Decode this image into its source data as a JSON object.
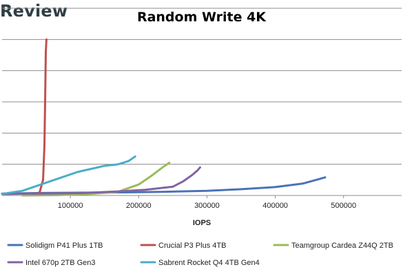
{
  "header": {
    "logo_text": "Review"
  },
  "chart_data": {
    "type": "line",
    "title": "Random Write 4K",
    "xlabel": "IOPS",
    "ylabel": "",
    "xlim": [
      0,
      585000
    ],
    "ylim": [
      0,
      6
    ],
    "xticks": [
      100000,
      200000,
      300000,
      400000,
      500000
    ],
    "xtick_labels": [
      "100000",
      "200000",
      "300000",
      "400000",
      "500000"
    ],
    "grid": true,
    "legend_position": "bottom",
    "series": [
      {
        "name": "Solidigm P41 Plus 1TB",
        "color": "#4a72b8",
        "points": [
          [
            0,
            0.06
          ],
          [
            60000,
            0.08
          ],
          [
            120000,
            0.09
          ],
          [
            180000,
            0.1
          ],
          [
            240000,
            0.12
          ],
          [
            300000,
            0.15
          ],
          [
            350000,
            0.2
          ],
          [
            400000,
            0.27
          ],
          [
            440000,
            0.38
          ],
          [
            460000,
            0.5
          ],
          [
            473000,
            0.58
          ]
        ]
      },
      {
        "name": "Crucial P3 Plus 4TB",
        "color": "#c0504d",
        "points": [
          [
            0,
            0.05
          ],
          [
            50000,
            0.06
          ],
          [
            55000,
            0.1
          ],
          [
            60000,
            0.5
          ],
          [
            62000,
            1.6
          ],
          [
            63000,
            3.0
          ],
          [
            64000,
            4.6
          ],
          [
            65000,
            5.0
          ]
        ]
      },
      {
        "name": "Teamgroup Cardea Z44Q 2TB",
        "color": "#9bbb59",
        "points": [
          [
            30000,
            0.0
          ],
          [
            80000,
            0.01
          ],
          [
            130000,
            0.05
          ],
          [
            170000,
            0.12
          ],
          [
            200000,
            0.35
          ],
          [
            220000,
            0.65
          ],
          [
            235000,
            0.9
          ],
          [
            245000,
            1.05
          ]
        ]
      },
      {
        "name": "Intel 670p 2TB Gen3",
        "color": "#8064a2",
        "points": [
          [
            0,
            0.05
          ],
          [
            60000,
            0.06
          ],
          [
            120000,
            0.08
          ],
          [
            170000,
            0.13
          ],
          [
            210000,
            0.18
          ],
          [
            250000,
            0.28
          ],
          [
            265000,
            0.45
          ],
          [
            278000,
            0.65
          ],
          [
            286000,
            0.8
          ],
          [
            290000,
            0.9
          ]
        ]
      },
      {
        "name": "Sabrent Rocket Q4 4TB Gen4",
        "color": "#4bacc6",
        "points": [
          [
            0,
            0.05
          ],
          [
            30000,
            0.15
          ],
          [
            70000,
            0.45
          ],
          [
            110000,
            0.75
          ],
          [
            150000,
            0.95
          ],
          [
            170000,
            1.0
          ],
          [
            185000,
            1.1
          ],
          [
            195000,
            1.25
          ]
        ]
      }
    ]
  }
}
